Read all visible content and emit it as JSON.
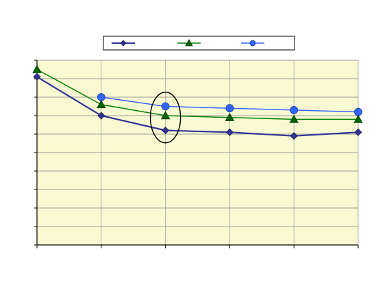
{
  "chart_data": {
    "type": "line",
    "title": "",
    "xlabel": "",
    "ylabel": "",
    "x": [
      1,
      2,
      3,
      4,
      5,
      6
    ],
    "xlim": [
      1,
      6
    ],
    "ylim": [
      0,
      10
    ],
    "grid": true,
    "legend_position": "top",
    "plot_background": "#fafad2",
    "series": [
      {
        "marker": "diamond",
        "color": "#333399",
        "marker_color": "#333399",
        "values": [
          9.1,
          7.0,
          6.2,
          6.1,
          5.9,
          6.1
        ]
      },
      {
        "marker": "triangle",
        "color": "#008000",
        "marker_color": "#006600",
        "values": [
          9.5,
          7.6,
          7.0,
          6.9,
          6.8,
          6.8
        ]
      },
      {
        "marker": "circle",
        "color": "#3366ff",
        "marker_color": "#3366ff",
        "values": [
          null,
          8.0,
          7.5,
          7.4,
          7.3,
          7.2
        ]
      }
    ],
    "annotations": [
      {
        "type": "ellipse",
        "x": 3,
        "y_center": 6.9,
        "highlights": "values at x = 3"
      }
    ]
  }
}
